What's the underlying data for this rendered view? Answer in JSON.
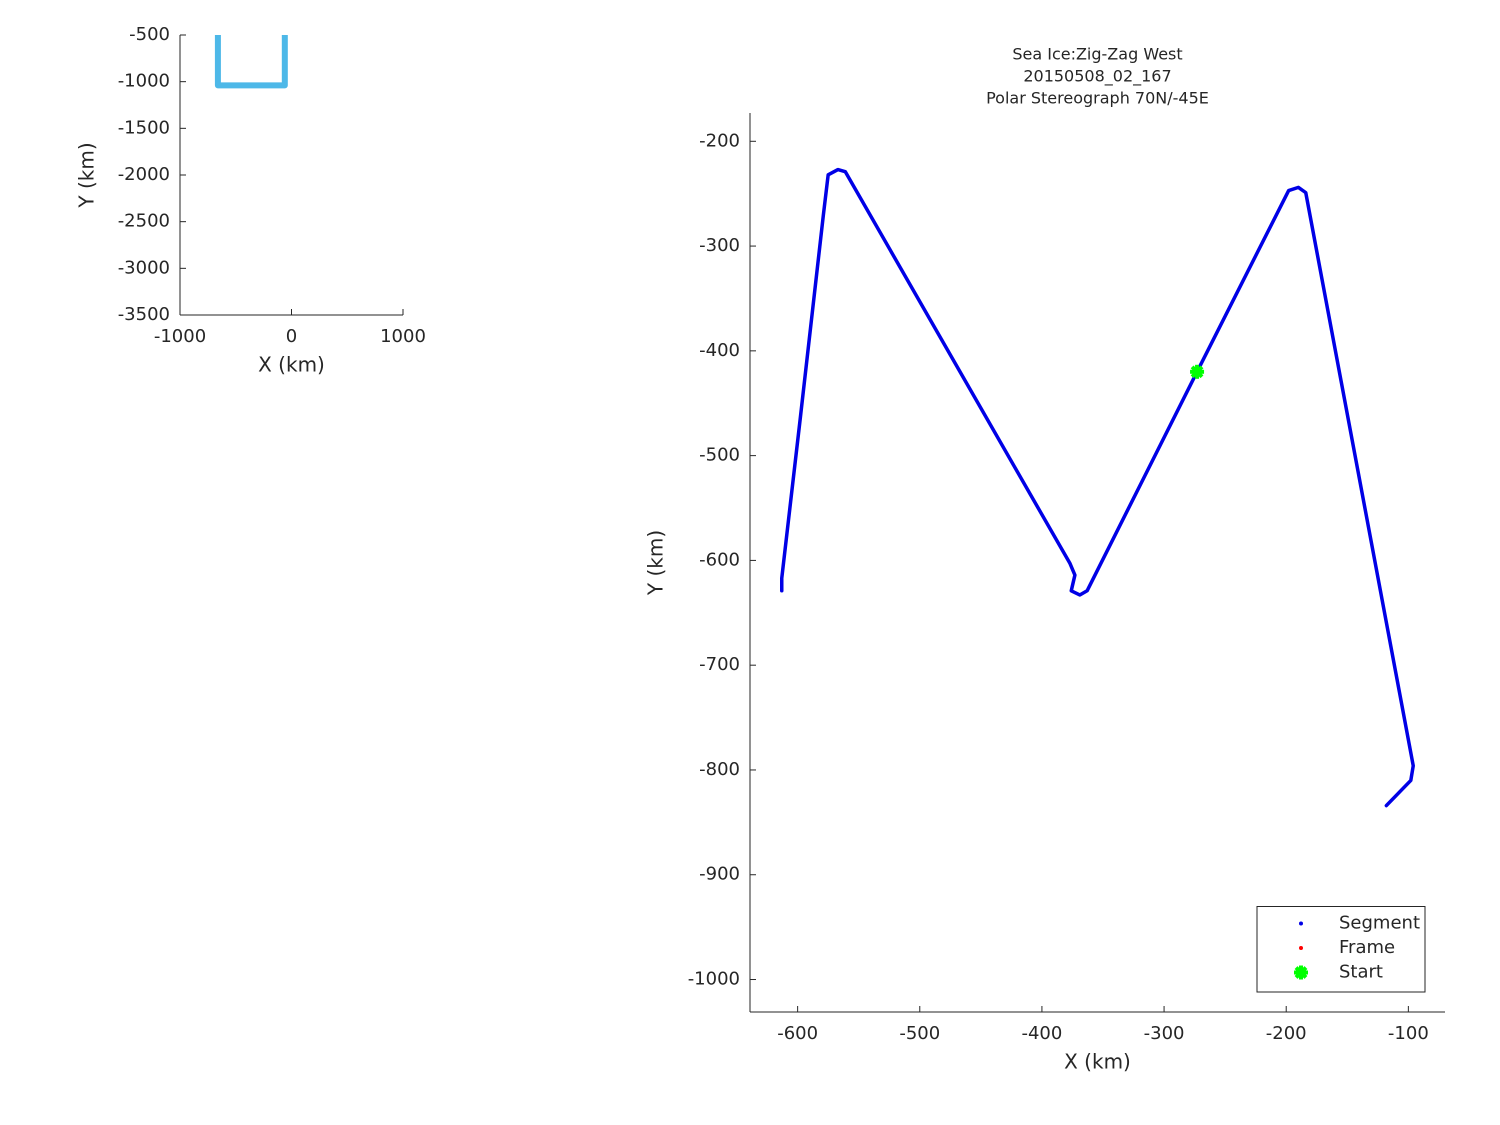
{
  "chart_data": [
    {
      "type": "line",
      "xlabel": "X (km)",
      "ylabel": "Y (km)",
      "xlim": [
        -1000,
        1000
      ],
      "ylim": [
        -3500,
        -500
      ],
      "xticks": [
        -1000,
        0,
        1000
      ],
      "yticks": [
        -3500,
        -3000,
        -2500,
        -2000,
        -1500,
        -1000,
        -500
      ],
      "series": [
        {
          "color": "#4db8e8",
          "x": [
            -660,
            -660,
            -60,
            -60
          ],
          "y": [
            -500,
            -1040,
            -1040,
            -500
          ]
        }
      ]
    },
    {
      "type": "line",
      "title": [
        "Sea Ice:Zig-Zag West",
        "20150508_02_167",
        "Polar Stereograph 70N/-45E"
      ],
      "xlabel": "X (km)",
      "ylabel": "Y (km)",
      "xlim": [
        -639,
        -70
      ],
      "ylim": [
        -1031,
        -173
      ],
      "xticks": [
        -600,
        -500,
        -400,
        -300,
        -200,
        -100
      ],
      "yticks": [
        -1000,
        -900,
        -800,
        -700,
        -600,
        -500,
        -400,
        -300,
        -200
      ],
      "legend": "lower right",
      "series": [
        {
          "name": "Segment",
          "color": "#0000e6",
          "marker": ".",
          "x": [
            -613,
            -613,
            -598,
            -579,
            -575,
            -567,
            -561,
            -377,
            -373,
            -376,
            -369,
            -363,
            -273,
            -198,
            -190,
            -184,
            -96,
            -98,
            -118
          ],
          "y": [
            -629,
            -617,
            -466,
            -271,
            -232,
            -227,
            -229,
            -603,
            -614,
            -629,
            -633,
            -629,
            -420,
            -247,
            -244,
            -249,
            -796,
            -810,
            -834
          ]
        },
        {
          "name": "Frame",
          "color": "#ff0000",
          "marker": ".",
          "x": [],
          "y": []
        },
        {
          "name": "Start",
          "color": "#00ff00",
          "marker": "*",
          "x": [
            -273
          ],
          "y": [
            -420
          ]
        }
      ]
    }
  ]
}
